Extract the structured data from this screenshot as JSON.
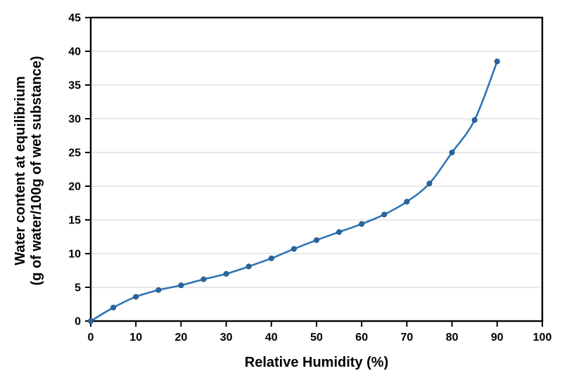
{
  "chart_data": {
    "type": "line",
    "title": "",
    "xlabel": "Relative Humidity (%)",
    "ylabel": "Water content at equilibrium (g of water/100g of wet substance)",
    "ylabel_lines": [
      "Water content at equilibrium",
      "(g of water/100g of wet substance)"
    ],
    "xlim": [
      0,
      100
    ],
    "ylim": [
      0,
      45
    ],
    "x_ticks": [
      0,
      10,
      20,
      30,
      40,
      50,
      60,
      70,
      80,
      90,
      100
    ],
    "y_ticks": [
      0,
      5,
      10,
      15,
      20,
      25,
      30,
      35,
      40,
      45
    ],
    "grid": "horizontal-only",
    "legend": "none",
    "marker": "circle",
    "line_smooth": true,
    "series": [
      {
        "name": "water-content-vs-relative-humidity",
        "x": [
          0,
          5,
          10,
          15,
          20,
          25,
          30,
          35,
          40,
          45,
          50,
          55,
          60,
          65,
          70,
          75,
          80,
          85,
          90
        ],
        "y": [
          0,
          2.0,
          3.6,
          4.6,
          5.3,
          6.2,
          7.0,
          8.1,
          9.3,
          10.7,
          12.0,
          13.2,
          14.4,
          15.8,
          17.7,
          20.4,
          25.0,
          29.8,
          38.5
        ]
      }
    ],
    "colors": {
      "line": "#2E75B6",
      "marker_fill": "#2E75B6",
      "marker_stroke": "#1F4E79",
      "grid": "#D9D9D9",
      "axis": "#000000",
      "text": "#000000",
      "background": "#FFFFFF"
    }
  }
}
